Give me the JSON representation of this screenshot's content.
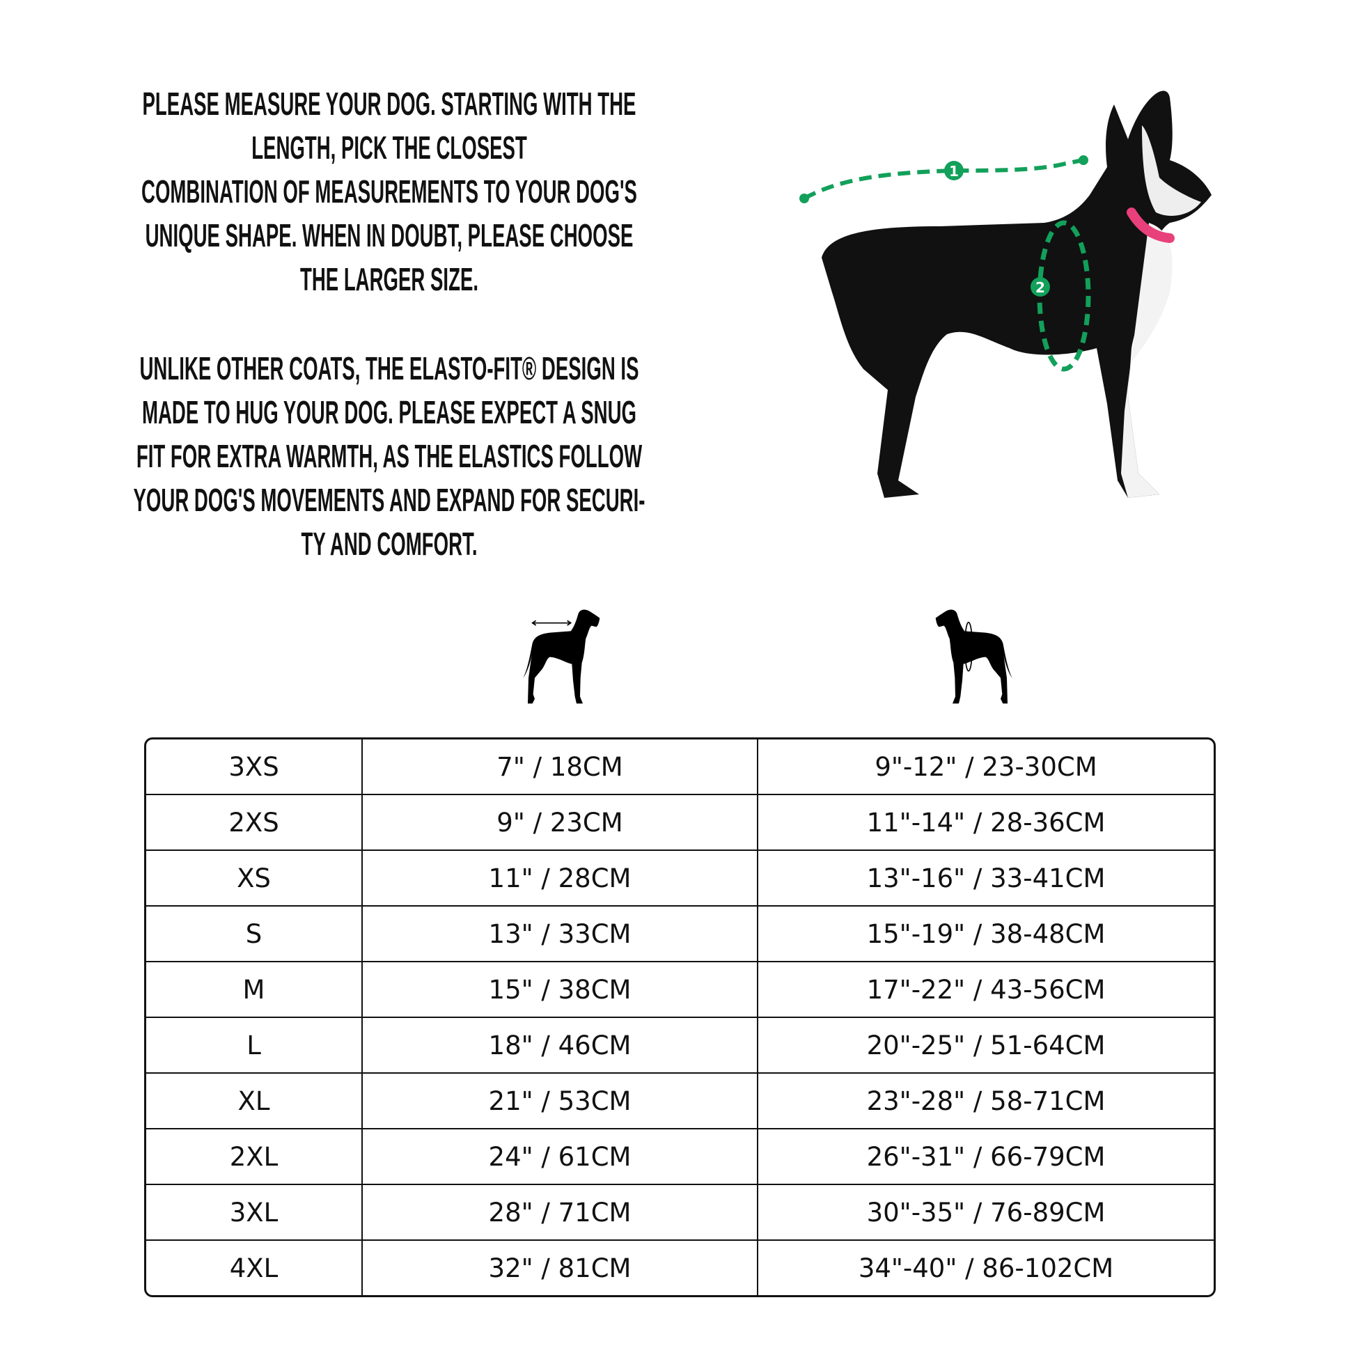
{
  "intro": {
    "paragraph1": [
      "PLEASE MEASURE YOUR DOG. STARTING WITH THE",
      "LENGTH, PICK THE CLOSEST",
      "COMBINATION OF MEASUREMENTS TO YOUR DOG'S",
      "UNIQUE SHAPE. WHEN IN DOUBT, PLEASE CHOOSE",
      "THE LARGER SIZE."
    ],
    "paragraph2": [
      "UNLIKE OTHER COATS, THE ELASTO-FIT® DESIGN IS",
      "MADE TO HUG YOUR DOG. PLEASE EXPECT A SNUG",
      "FIT FOR EXTRA WARMTH, AS THE ELASTICS FOLLOW",
      "YOUR DOG'S MOVEMENTS AND EXPAND FOR SECURI-",
      "TY AND COMFORT."
    ]
  },
  "photo": {
    "marker1": "1",
    "marker2": "2",
    "accent": "#12a05a",
    "collar": "#e8407a"
  },
  "icons": {
    "length": "dog-length-icon",
    "chest": "dog-chest-icon"
  },
  "table": {
    "rows": [
      [
        "3XS",
        "7\" / 18CM",
        "9\"-12\" / 23-30CM"
      ],
      [
        "2XS",
        "9\" / 23CM",
        "11\"-14\" / 28-36CM"
      ],
      [
        "XS",
        "11\" / 28CM",
        "13\"-16\" / 33-41CM"
      ],
      [
        "S",
        "13\" / 33CM",
        "15\"-19\" / 38-48CM"
      ],
      [
        "M",
        "15\" / 38CM",
        "17\"-22\" / 43-56CM"
      ],
      [
        "L",
        "18\" / 46CM",
        "20\"-25\" / 51-64CM"
      ],
      [
        "XL",
        "21\" / 53CM",
        "23\"-28\" / 58-71CM"
      ],
      [
        "2XL",
        "24\" / 61CM",
        "26\"-31\" / 66-79CM"
      ],
      [
        "3XL",
        "28\" / 71CM",
        "30\"-35\" / 76-89CM"
      ],
      [
        "4XL",
        "32\" / 81CM",
        "34\"-40\" / 86-102CM"
      ]
    ]
  }
}
